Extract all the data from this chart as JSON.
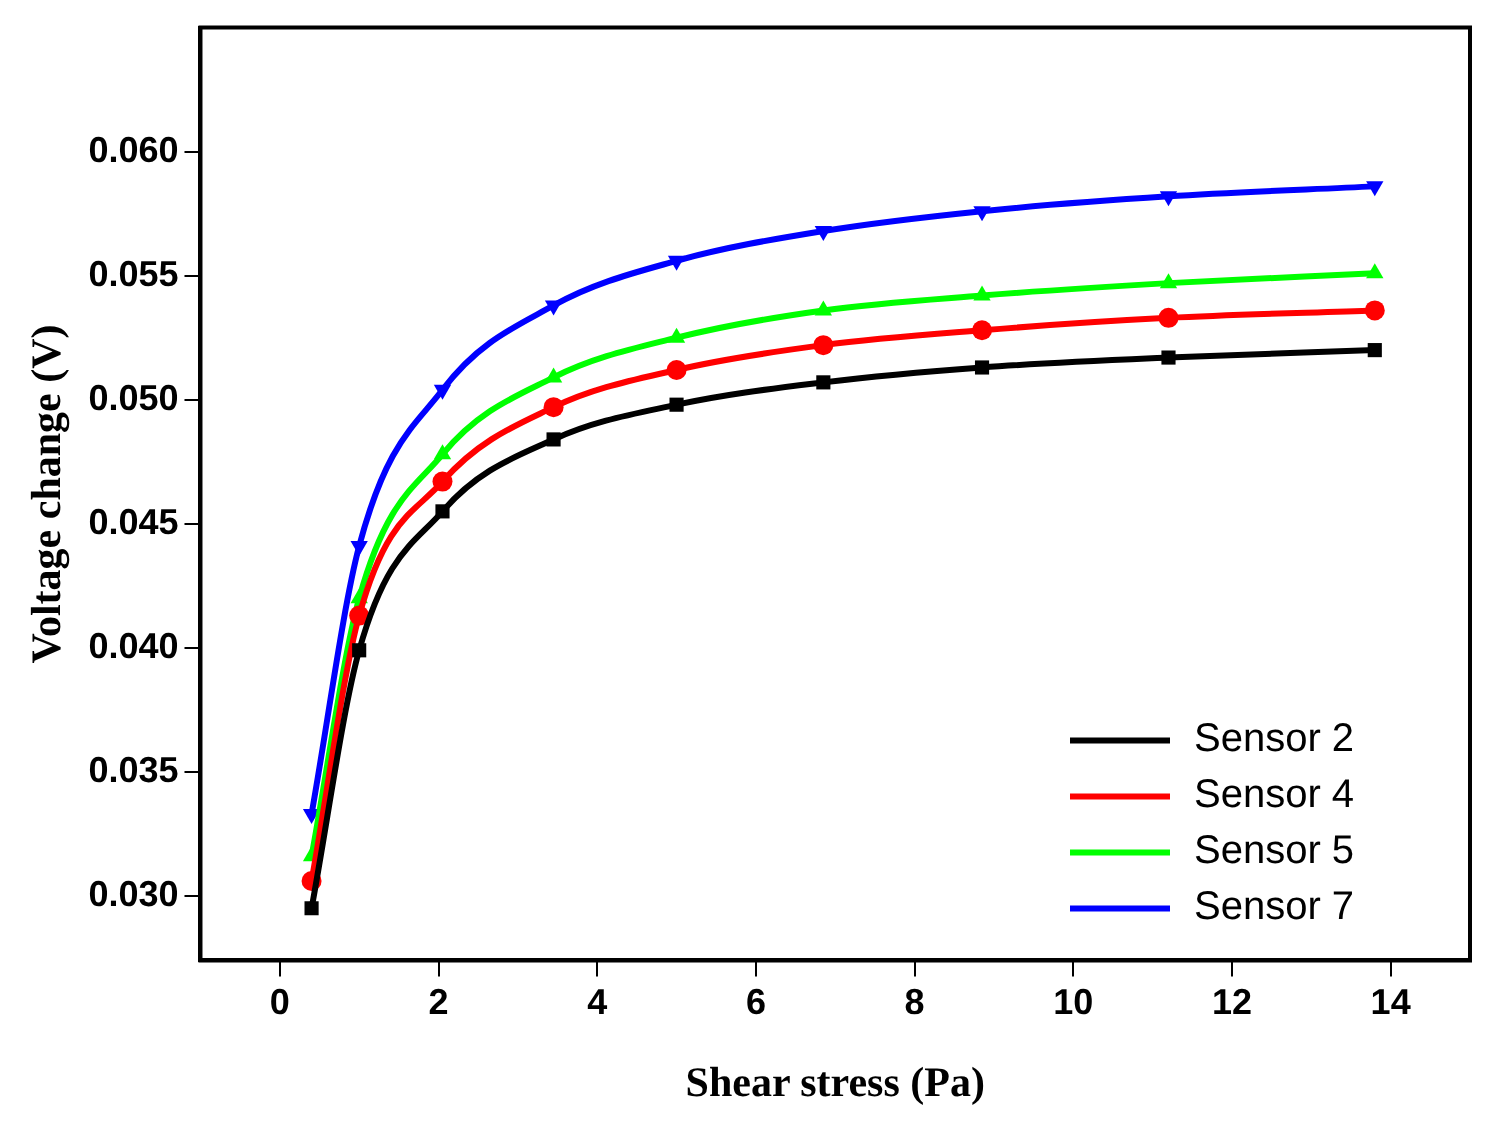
{
  "chart_data": {
    "type": "line",
    "xlabel": "Shear stress (Pa)",
    "ylabel": "Voltage change (V)",
    "xlim": [
      -1,
      15
    ],
    "xticks": [
      0,
      2,
      4,
      6,
      8,
      10,
      12,
      14
    ],
    "ylim": [
      0.0274,
      0.065
    ],
    "yticks": [
      {
        "value": 0.03,
        "label": "0.030"
      },
      {
        "value": 0.035,
        "label": "0.035"
      },
      {
        "value": 0.04,
        "label": "0.040"
      },
      {
        "value": 0.045,
        "label": "0.045"
      },
      {
        "value": 0.05,
        "label": "0.050"
      },
      {
        "value": 0.055,
        "label": "0.055"
      },
      {
        "value": 0.06,
        "label": "0.060"
      }
    ],
    "x": [
      0.4,
      1.0,
      2.05,
      3.45,
      5.0,
      6.85,
      8.85,
      11.2,
      13.8
    ],
    "series": [
      {
        "name": "Sensor 2",
        "color": "#000000",
        "marker": "square",
        "values": [
          0.0295,
          0.0399,
          0.0455,
          0.0484,
          0.0498,
          0.0507,
          0.0513,
          0.0517,
          0.052
        ]
      },
      {
        "name": "Sensor 4",
        "color": "#ff0000",
        "marker": "circle",
        "values": [
          0.0306,
          0.0413,
          0.0467,
          0.0497,
          0.0512,
          0.0522,
          0.0528,
          0.0533,
          0.0536
        ]
      },
      {
        "name": "Sensor 5",
        "color": "#00ff00",
        "marker": "triangle",
        "values": [
          0.0316,
          0.042,
          0.0478,
          0.0509,
          0.0525,
          0.0536,
          0.0542,
          0.0547,
          0.0551
        ]
      },
      {
        "name": "Sensor 7",
        "color": "#0000ff",
        "marker": "triangle-down",
        "values": [
          0.0333,
          0.0441,
          0.0504,
          0.0538,
          0.0556,
          0.0568,
          0.0576,
          0.0582,
          0.0586
        ]
      }
    ],
    "legend": "bottom right",
    "grid": false,
    "line_style": "solid"
  }
}
